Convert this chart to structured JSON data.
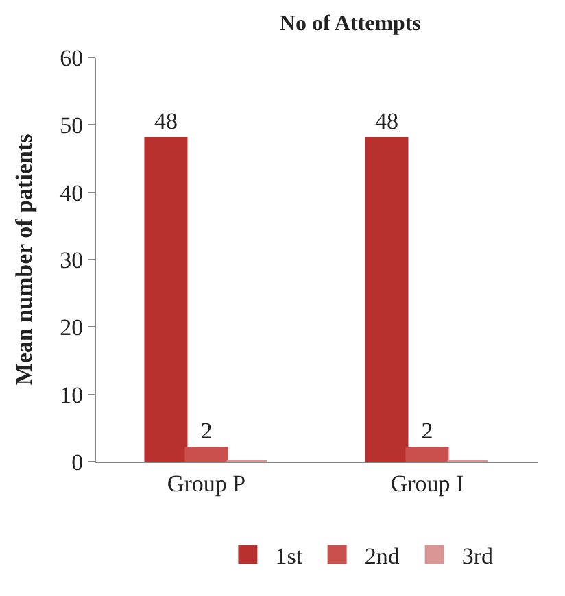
{
  "chart_data": {
    "type": "bar",
    "title": "No of Attempts",
    "ylabel": "Mean number of patients",
    "categories": [
      "Group P",
      "Group I"
    ],
    "series": [
      {
        "name": "1st",
        "color": "#b8312f",
        "values": [
          48,
          48
        ],
        "value_labels": [
          "48",
          "48"
        ]
      },
      {
        "name": "2nd",
        "color": "#c9504d",
        "values": [
          2,
          2
        ],
        "value_labels": [
          "2",
          "2"
        ]
      },
      {
        "name": "3rd",
        "color": "#d99694",
        "values": [
          0,
          0
        ],
        "value_labels": [
          null,
          null
        ]
      }
    ],
    "ylim": [
      0,
      60
    ],
    "yticks": [
      0,
      10,
      20,
      30,
      40,
      50,
      60
    ],
    "grid": false,
    "legend": "bottom"
  }
}
